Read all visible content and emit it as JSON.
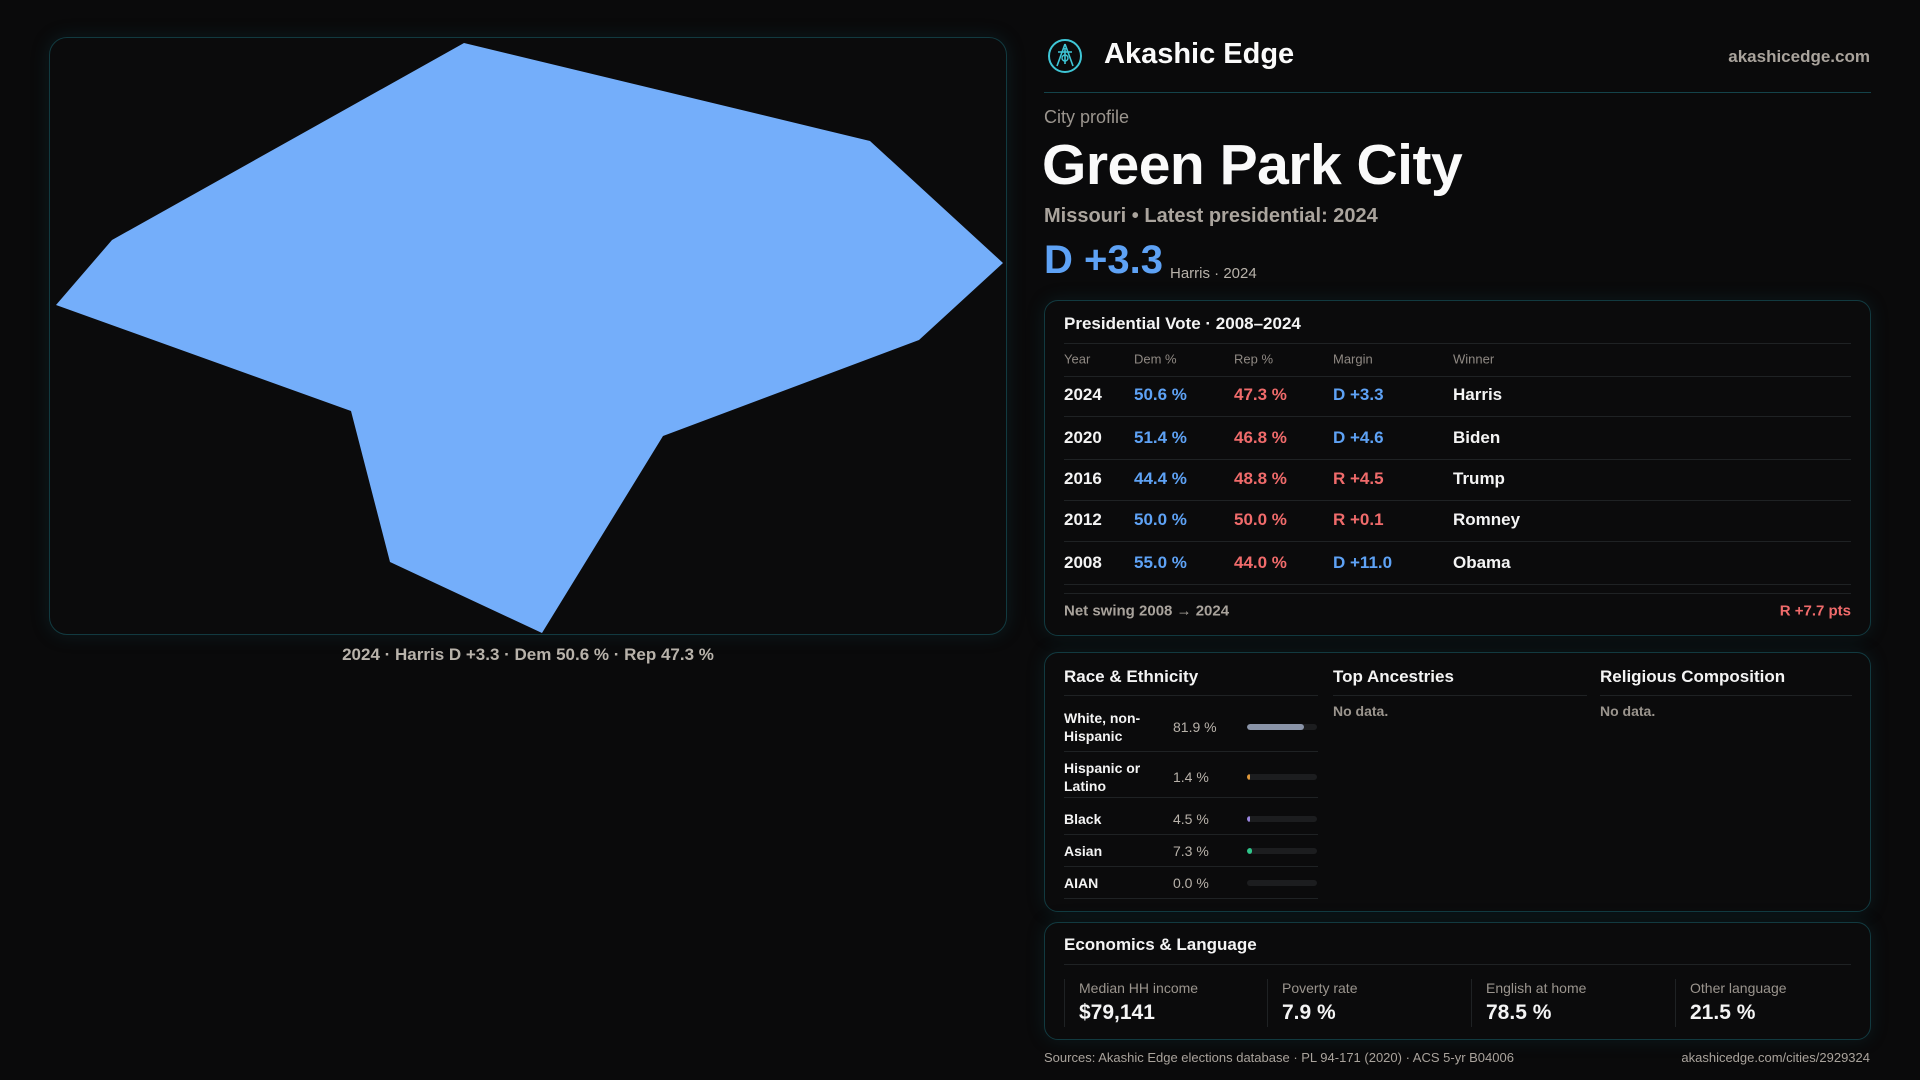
{
  "brand": {
    "name": "Akashic Edge",
    "domain": "akashicedge.com",
    "logo_icon": "compass-emblem-icon"
  },
  "profile": {
    "kicker": "City profile",
    "title": "Green Park City",
    "subtitle": "Missouri • Latest presidential: 2024",
    "margin": "D +3.3",
    "margin_sub": "Harris · 2024"
  },
  "map": {
    "caption": "2024 · Harris D +3.3 · Dem 50.6 % · Rep 47.3 %",
    "fill_color": "#74aefa"
  },
  "vote": {
    "title": "Presidential Vote · 2008–2024",
    "headers": [
      "Year",
      "Dem %",
      "Rep %",
      "Margin",
      "Winner"
    ],
    "rows": [
      {
        "year": "2024",
        "dem": "50.6 %",
        "rep": "47.3 %",
        "margin": "D +3.3",
        "party": "D",
        "winner": "Harris"
      },
      {
        "year": "2020",
        "dem": "51.4 %",
        "rep": "46.8 %",
        "margin": "D +4.6",
        "party": "D",
        "winner": "Biden"
      },
      {
        "year": "2016",
        "dem": "44.4 %",
        "rep": "48.8 %",
        "margin": "R +4.5",
        "party": "R",
        "winner": "Trump"
      },
      {
        "year": "2012",
        "dem": "50.0 %",
        "rep": "50.0 %",
        "margin": "R +0.1",
        "party": "R",
        "winner": "Romney"
      },
      {
        "year": "2008",
        "dem": "55.0 %",
        "rep": "44.0 %",
        "margin": "D +11.0",
        "party": "D",
        "winner": "Obama"
      }
    ],
    "net_swing_label": "Net swing 2008 → 2024",
    "net_swing_value": "R +7.7 pts"
  },
  "race": {
    "title": "Race & Ethnicity",
    "rows": [
      {
        "label": "White, non-Hispanic",
        "value": "81.9 %",
        "pct": 81.9,
        "color": "#8a94a8"
      },
      {
        "label": "Hispanic or Latino",
        "value": "1.4 %",
        "pct": 1.4,
        "color": "#e0983a"
      },
      {
        "label": "Black",
        "value": "4.5 %",
        "pct": 4.5,
        "color": "#9a86e0"
      },
      {
        "label": "Asian",
        "value": "7.3 %",
        "pct": 7.3,
        "color": "#2fc48a"
      },
      {
        "label": "AIAN",
        "value": "0.0 %",
        "pct": 0.0,
        "color": "#888888"
      }
    ]
  },
  "ancestries": {
    "title": "Top Ancestries",
    "empty": "No data."
  },
  "religion": {
    "title": "Religious Composition",
    "empty": "No data."
  },
  "economics": {
    "title": "Economics & Language",
    "stats": [
      {
        "label": "Median HH income",
        "value": "$79,141"
      },
      {
        "label": "Poverty rate",
        "value": "7.9 %"
      },
      {
        "label": "English at home",
        "value": "78.5 %"
      },
      {
        "label": "Other language",
        "value": "21.5 %"
      }
    ]
  },
  "footer": {
    "sources": "Sources: Akashic Edge elections database · PL 94-171 (2020) · ACS 5-yr B04006",
    "url": "akashicedge.com/cities/2929324"
  },
  "colors": {
    "dem": "#5ea2f5",
    "rep": "#f06b6b",
    "border": "#123a40",
    "background": "#0a0a0b"
  }
}
